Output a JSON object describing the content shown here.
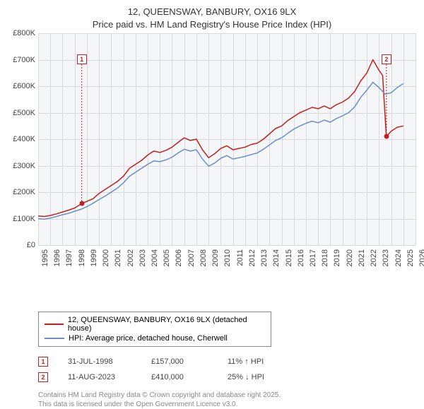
{
  "title_line1": "12, QUEENSWAY, BANBURY, OX16 9LX",
  "title_line2": "Price paid vs. HM Land Registry's House Price Index (HPI)",
  "chart": {
    "type": "line",
    "background_color": "#f5f6f8",
    "grid_color": "#d7dbe0",
    "xlim": [
      1995,
      2026
    ],
    "ylim": [
      0,
      800
    ],
    "y_unit_prefix": "£",
    "y_unit_suffix": "K",
    "y_ticks": [
      0,
      100,
      200,
      300,
      400,
      500,
      600,
      700,
      800
    ],
    "x_ticks": [
      1995,
      1996,
      1997,
      1998,
      1999,
      2000,
      2001,
      2002,
      2003,
      2004,
      2005,
      2006,
      2007,
      2008,
      2009,
      2010,
      2011,
      2012,
      2013,
      2014,
      2015,
      2016,
      2017,
      2018,
      2019,
      2020,
      2021,
      2022,
      2023,
      2024,
      2025,
      2026
    ],
    "series": [
      {
        "label": "12, QUEENSWAY, BANBURY, OX16 9LX (detached house)",
        "color": "#c02020",
        "width": 1.5,
        "data": [
          [
            1995,
            110
          ],
          [
            1995.5,
            108
          ],
          [
            1996,
            112
          ],
          [
            1996.5,
            118
          ],
          [
            1997,
            125
          ],
          [
            1997.5,
            132
          ],
          [
            1998,
            140
          ],
          [
            1998.58,
            157
          ],
          [
            1999,
            165
          ],
          [
            1999.5,
            175
          ],
          [
            2000,
            195
          ],
          [
            2000.5,
            210
          ],
          [
            2001,
            225
          ],
          [
            2001.5,
            240
          ],
          [
            2002,
            260
          ],
          [
            2002.5,
            290
          ],
          [
            2003,
            305
          ],
          [
            2003.5,
            320
          ],
          [
            2004,
            340
          ],
          [
            2004.5,
            355
          ],
          [
            2005,
            350
          ],
          [
            2005.5,
            358
          ],
          [
            2006,
            370
          ],
          [
            2006.5,
            388
          ],
          [
            2007,
            405
          ],
          [
            2007.5,
            395
          ],
          [
            2008,
            400
          ],
          [
            2008.5,
            360
          ],
          [
            2009,
            330
          ],
          [
            2009.5,
            345
          ],
          [
            2010,
            365
          ],
          [
            2010.5,
            375
          ],
          [
            2011,
            360
          ],
          [
            2011.5,
            365
          ],
          [
            2012,
            370
          ],
          [
            2012.5,
            380
          ],
          [
            2013,
            385
          ],
          [
            2013.5,
            400
          ],
          [
            2014,
            420
          ],
          [
            2014.5,
            440
          ],
          [
            2015,
            450
          ],
          [
            2015.5,
            470
          ],
          [
            2016,
            485
          ],
          [
            2016.5,
            500
          ],
          [
            2017,
            510
          ],
          [
            2017.5,
            520
          ],
          [
            2018,
            515
          ],
          [
            2018.5,
            525
          ],
          [
            2019,
            515
          ],
          [
            2019.5,
            530
          ],
          [
            2020,
            540
          ],
          [
            2020.5,
            555
          ],
          [
            2021,
            580
          ],
          [
            2021.5,
            620
          ],
          [
            2022,
            650
          ],
          [
            2022.5,
            700
          ],
          [
            2023,
            660
          ],
          [
            2023.3,
            640
          ],
          [
            2023.6,
            410
          ],
          [
            2023.8,
            420
          ],
          [
            2024,
            430
          ],
          [
            2024.5,
            445
          ],
          [
            2025,
            450
          ]
        ]
      },
      {
        "label": "HPI: Average price, detached house, Cherwell",
        "color": "#6a8fc7",
        "width": 1.5,
        "data": [
          [
            1995,
            100
          ],
          [
            1995.5,
            98
          ],
          [
            1996,
            102
          ],
          [
            1996.5,
            108
          ],
          [
            1997,
            115
          ],
          [
            1997.5,
            120
          ],
          [
            1998,
            128
          ],
          [
            1998.5,
            135
          ],
          [
            1999,
            145
          ],
          [
            1999.5,
            158
          ],
          [
            2000,
            172
          ],
          [
            2000.5,
            185
          ],
          [
            2001,
            200
          ],
          [
            2001.5,
            215
          ],
          [
            2002,
            235
          ],
          [
            2002.5,
            260
          ],
          [
            2003,
            275
          ],
          [
            2003.5,
            290
          ],
          [
            2004,
            305
          ],
          [
            2004.5,
            318
          ],
          [
            2005,
            315
          ],
          [
            2005.5,
            322
          ],
          [
            2006,
            332
          ],
          [
            2006.5,
            348
          ],
          [
            2007,
            362
          ],
          [
            2007.5,
            355
          ],
          [
            2008,
            360
          ],
          [
            2008.5,
            325
          ],
          [
            2009,
            298
          ],
          [
            2009.5,
            310
          ],
          [
            2010,
            328
          ],
          [
            2010.5,
            338
          ],
          [
            2011,
            325
          ],
          [
            2011.5,
            330
          ],
          [
            2012,
            335
          ],
          [
            2012.5,
            342
          ],
          [
            2013,
            348
          ],
          [
            2013.5,
            362
          ],
          [
            2014,
            378
          ],
          [
            2014.5,
            395
          ],
          [
            2015,
            405
          ],
          [
            2015.5,
            422
          ],
          [
            2016,
            438
          ],
          [
            2016.5,
            450
          ],
          [
            2017,
            460
          ],
          [
            2017.5,
            468
          ],
          [
            2018,
            462
          ],
          [
            2018.5,
            472
          ],
          [
            2019,
            464
          ],
          [
            2019.5,
            478
          ],
          [
            2020,
            488
          ],
          [
            2020.5,
            500
          ],
          [
            2021,
            522
          ],
          [
            2021.5,
            558
          ],
          [
            2022,
            585
          ],
          [
            2022.5,
            615
          ],
          [
            2023,
            595
          ],
          [
            2023.5,
            570
          ],
          [
            2024,
            575
          ],
          [
            2024.5,
            595
          ],
          [
            2025,
            610
          ]
        ]
      }
    ],
    "sale_markers": [
      {
        "n": "1",
        "x": 1998.58,
        "y": 157,
        "box_top": 30,
        "color": "#c02020"
      },
      {
        "n": "2",
        "x": 2023.61,
        "y": 410,
        "box_top": 30,
        "color": "#c02020"
      }
    ]
  },
  "legend": {
    "items": [
      {
        "color": "#c02020",
        "label": "12, QUEENSWAY, BANBURY, OX16 9LX (detached house)"
      },
      {
        "color": "#6a8fc7",
        "label": "HPI: Average price, detached house, Cherwell"
      }
    ]
  },
  "sales": [
    {
      "n": "1",
      "color": "#c02020",
      "date": "31-JUL-1998",
      "price": "£157,000",
      "delta": "11% ↑ HPI"
    },
    {
      "n": "2",
      "color": "#c02020",
      "date": "11-AUG-2023",
      "price": "£410,000",
      "delta": "25% ↓ HPI"
    }
  ],
  "attribution_line1": "Contains HM Land Registry data © Crown copyright and database right 2025.",
  "attribution_line2": "This data is licensed under the Open Government Licence v3.0."
}
